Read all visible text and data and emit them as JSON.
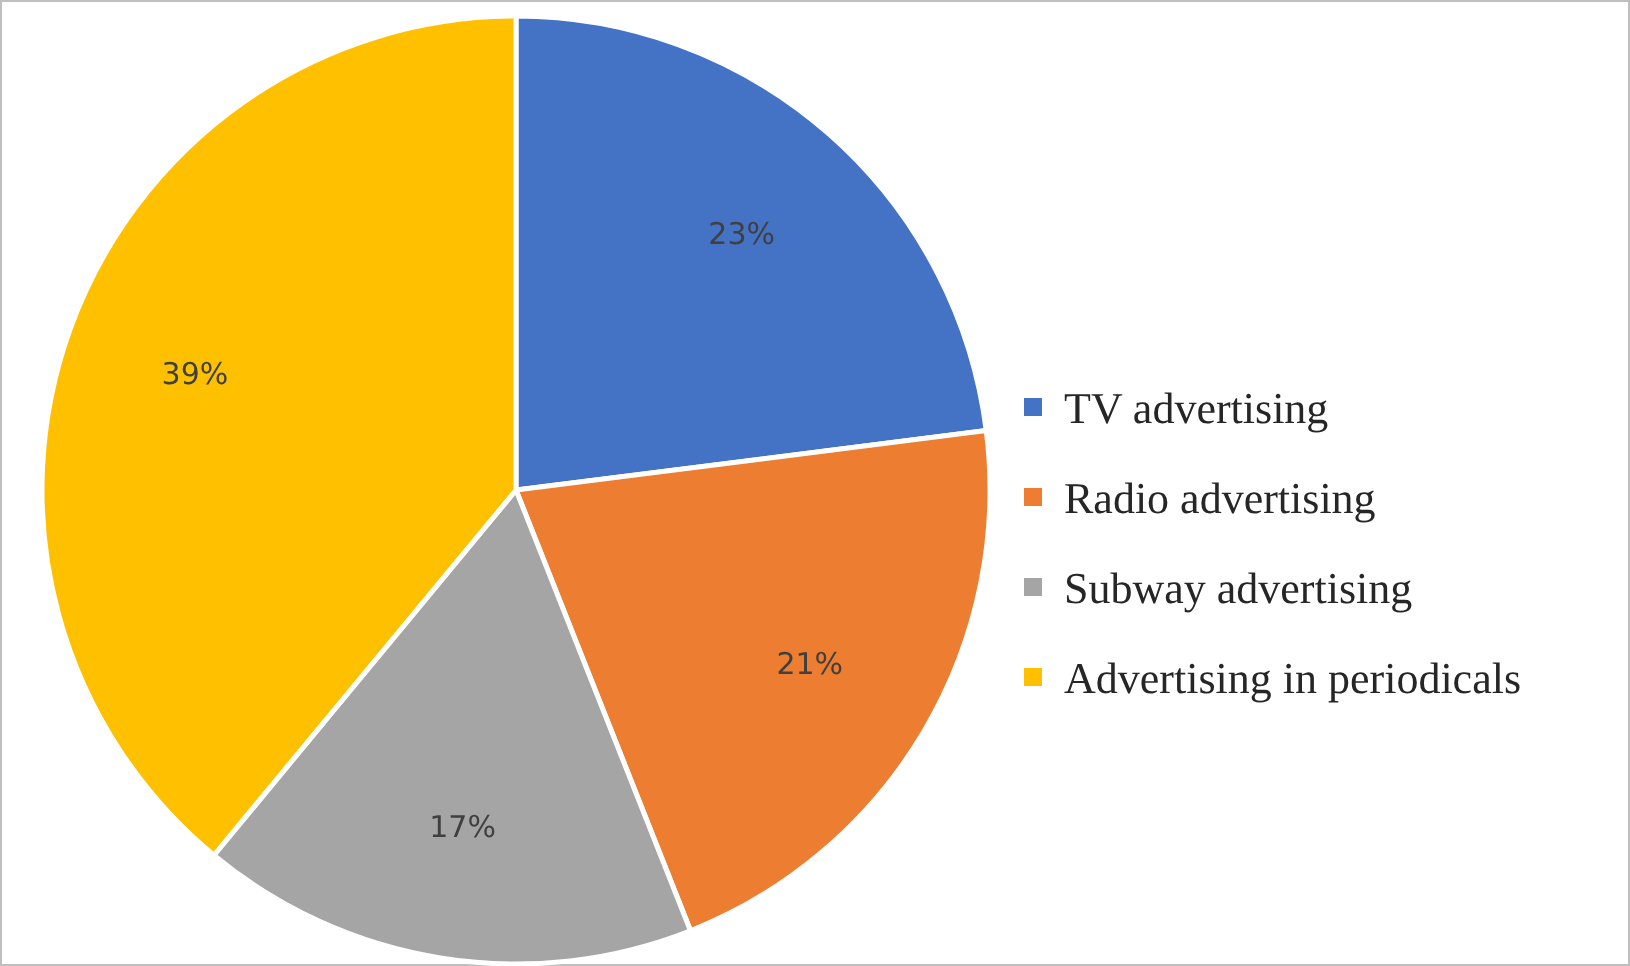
{
  "chart_data": {
    "type": "pie",
    "categories": [
      "TV advertising",
      "Radio advertising",
      "Subway advertising",
      "Advertising in periodicals"
    ],
    "values": [
      23,
      21,
      17,
      39
    ],
    "colors": [
      "#4472c4",
      "#ed7d31",
      "#a5a5a5",
      "#ffc000"
    ],
    "value_labels": [
      "23%",
      "21%",
      "17%",
      "39%"
    ],
    "legend": "right"
  }
}
